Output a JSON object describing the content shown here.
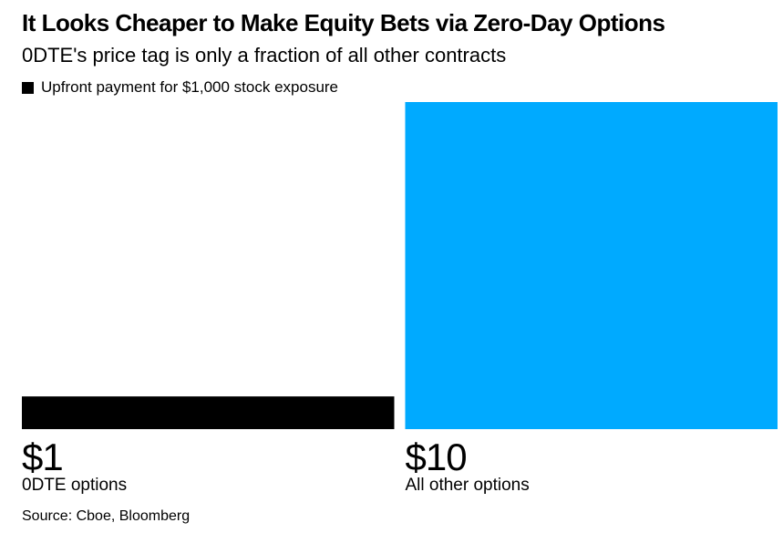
{
  "header": {
    "title": "It Looks Cheaper to Make Equity Bets via Zero-Day Options",
    "subtitle": "0DTE's price tag is only a fraction of all other contracts"
  },
  "legend": {
    "label": "Upfront payment for $1,000 stock exposure",
    "color": "#000000"
  },
  "chart_data": {
    "type": "bar",
    "categories": [
      "0DTE options",
      "All other options"
    ],
    "values": [
      1,
      10
    ],
    "value_labels": [
      "$1",
      "$10"
    ],
    "colors": [
      "#000000",
      "#00aaff"
    ],
    "series": [
      {
        "name": "Upfront payment for $1,000 stock exposure",
        "values": [
          1,
          10
        ]
      }
    ],
    "ylim": [
      0,
      10
    ],
    "grid": false,
    "legend_position": "top-left"
  },
  "footer": {
    "source": "Source: Cboe, Bloomberg"
  }
}
